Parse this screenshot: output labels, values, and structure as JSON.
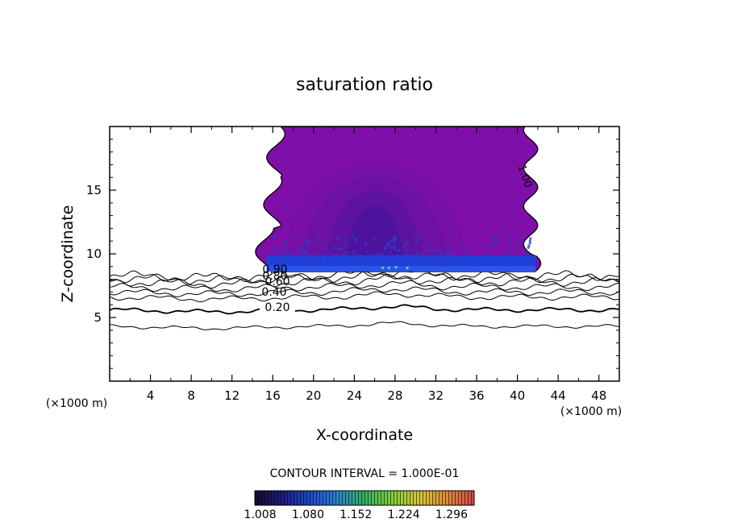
{
  "chart_data": {
    "type": "contour",
    "title": "saturation ratio",
    "xlabel": "X-coordinate",
    "ylabel": "Z-coordinate",
    "x_unit": "(×1000 m)",
    "y_unit": "(×1000 m)",
    "xlim": [
      0,
      50
    ],
    "ylim": [
      0,
      20
    ],
    "x_ticks": [
      4,
      8,
      12,
      16,
      20,
      24,
      28,
      32,
      36,
      40,
      44,
      48
    ],
    "y_ticks": [
      5,
      10,
      15
    ],
    "grid": false,
    "contour_interval_text": "CONTOUR INTERVAL = 1.000E-01",
    "contour_lines": [
      {
        "label": "0.20",
        "level": 0.2,
        "z_base": 5.6
      },
      {
        "label": "",
        "level": 0.1,
        "z_base": 4.3
      },
      {
        "label": "0.40",
        "level": 0.4,
        "z_base": 6.6
      },
      {
        "label": "",
        "level": 0.5,
        "z_base": 7.0
      },
      {
        "label": "0.60",
        "level": 0.6,
        "z_base": 7.4
      },
      {
        "label": "0.80",
        "level": 0.8,
        "z_base": 7.8
      },
      {
        "label": "0.90",
        "level": 0.9,
        "z_base": 8.1
      },
      {
        "label": "",
        "level": 0.95,
        "z_base": 8.3
      }
    ],
    "edge_label": "1.00",
    "cloud": {
      "x_left": 15,
      "x_right": 41,
      "z_bottom": 8.6,
      "z_top": 20,
      "peak_x": 26,
      "peak_z": 15
    },
    "colorbar": {
      "min": 1.0,
      "max": 1.33,
      "tick_labels": [
        "1.008",
        "1.080",
        "1.152",
        "1.224",
        "1.296"
      ],
      "colors": [
        "#160b2e",
        "#1d1d7a",
        "#1f49c8",
        "#2a82cf",
        "#35b060",
        "#7fcf3a",
        "#d5c43a",
        "#e08a3a",
        "#d2444a"
      ]
    }
  }
}
